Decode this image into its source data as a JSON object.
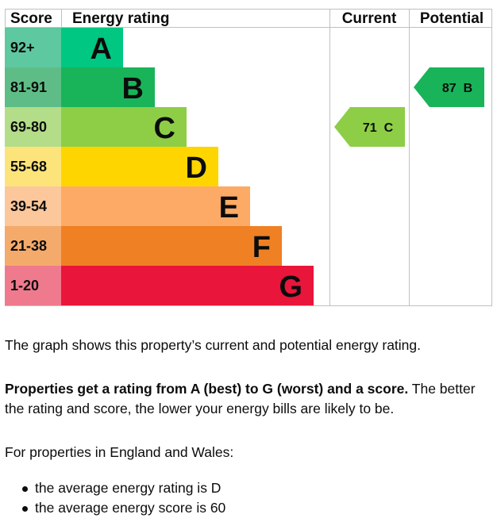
{
  "chart_data": {
    "type": "table",
    "headers": {
      "score": "Score",
      "rating": "Energy rating",
      "current": "Current",
      "potential": "Potential"
    },
    "bands": [
      {
        "score": "92+",
        "letter": "A",
        "color": "#00c781",
        "score_bg": "#5ec8a0"
      },
      {
        "score": "81-91",
        "letter": "B",
        "color": "#19b459",
        "score_bg": "#5ebd87"
      },
      {
        "score": "69-80",
        "letter": "C",
        "color": "#8dce46",
        "score_bg": "#b3dd88"
      },
      {
        "score": "55-68",
        "letter": "D",
        "color": "#ffd500",
        "score_bg": "#fde47a"
      },
      {
        "score": "39-54",
        "letter": "E",
        "color": "#fcaa65",
        "score_bg": "#fcc79a"
      },
      {
        "score": "21-38",
        "letter": "F",
        "color": "#ef8023",
        "score_bg": "#f4aa6b"
      },
      {
        "score": "1-20",
        "letter": "G",
        "color": "#e9153b",
        "score_bg": "#ef7a8d"
      }
    ],
    "current": {
      "score": 71,
      "letter": "C",
      "label": "71  C",
      "color": "#8dce46"
    },
    "potential": {
      "score": 87,
      "letter": "B",
      "label": "87  B",
      "color": "#19b459"
    }
  },
  "text": {
    "p1": "The graph shows this property’s current and potential energy rating.",
    "p2_bold": "Properties get a rating from A (best) to G (worst) and a score.",
    "p2_rest": " The better the rating and score, the lower your energy bills are likely to be.",
    "p3": "For properties in England and Wales:",
    "bullets": [
      "the average energy rating is D",
      "the average energy score is 60"
    ]
  }
}
